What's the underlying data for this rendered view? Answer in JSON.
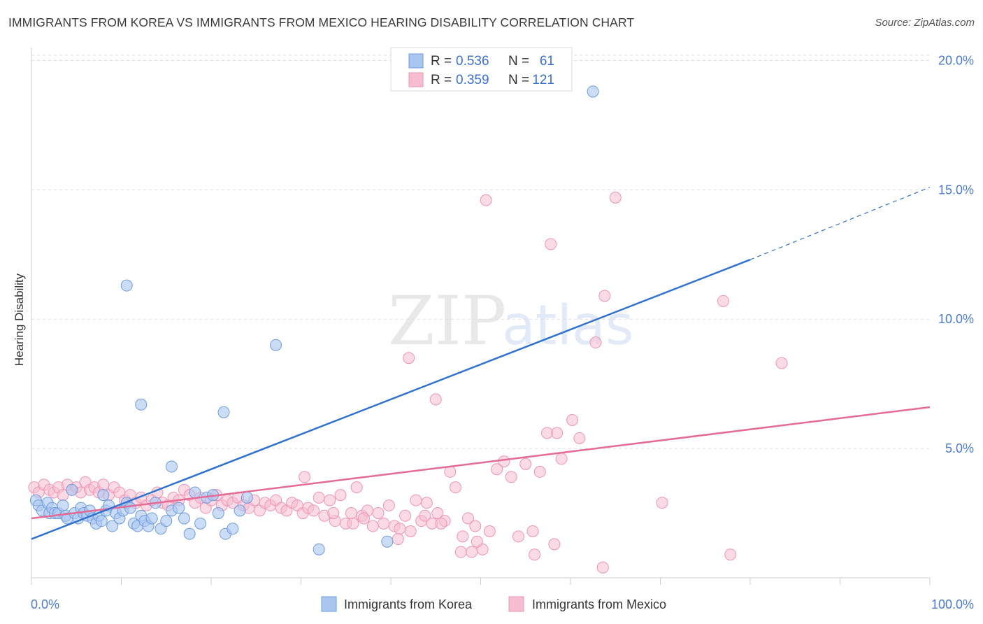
{
  "title": "IMMIGRANTS FROM KOREA VS IMMIGRANTS FROM MEXICO HEARING DISABILITY CORRELATION CHART",
  "source": "Source: ZipAtlas.com",
  "watermark": {
    "zip": "ZIP",
    "atlas": "atlas"
  },
  "colors": {
    "korea_fill": "#a9c6f0",
    "korea_stroke": "#6f9be0",
    "korea_line": "#2f72d0",
    "mexico_fill": "#f6bcd0",
    "mexico_stroke": "#ee94b3",
    "mexico_line": "#e56a96",
    "grid": "#dddddd",
    "tick_text": "#4a7bd0"
  },
  "legend": {
    "rows": [
      {
        "r_label": "R = ",
        "r_value": "0.536",
        "n_label": "N = ",
        "n_value": "61"
      },
      {
        "r_label": "R = ",
        "r_value": "0.359",
        "n_label": "N = ",
        "n_value": "121"
      }
    ]
  },
  "chart_data": {
    "type": "scatter",
    "title": "IMMIGRANTS FROM KOREA VS IMMIGRANTS FROM MEXICO HEARING DISABILITY CORRELATION CHART",
    "xlabel": "",
    "ylabel": "Hearing Disability",
    "xlim": [
      0,
      100
    ],
    "ylim": [
      0,
      20.5
    ],
    "x_tick_labels": [
      "0.0%",
      "100.0%"
    ],
    "y_ticks": [
      5,
      10,
      15,
      20
    ],
    "y_tick_labels": [
      "5.0%",
      "10.0%",
      "15.0%",
      "20.0%"
    ],
    "series": [
      {
        "name": "Immigrants from Korea",
        "R": 0.536,
        "N": 61,
        "trend": {
          "x0": 0,
          "y0": 1.5,
          "x1": 80,
          "y1": 12.3,
          "dash_to_x": 100,
          "dash_to_y": 15.1
        },
        "points": [
          [
            0.5,
            3.0
          ],
          [
            0.8,
            2.8
          ],
          [
            1.2,
            2.6
          ],
          [
            1.8,
            2.9
          ],
          [
            2.0,
            2.5
          ],
          [
            2.3,
            2.7
          ],
          [
            2.6,
            2.5
          ],
          [
            3.0,
            2.5
          ],
          [
            3.5,
            2.8
          ],
          [
            3.8,
            2.4
          ],
          [
            4.0,
            2.3
          ],
          [
            4.5,
            3.4
          ],
          [
            4.8,
            2.5
          ],
          [
            5.2,
            2.3
          ],
          [
            5.5,
            2.7
          ],
          [
            5.8,
            2.5
          ],
          [
            6.2,
            2.4
          ],
          [
            6.5,
            2.6
          ],
          [
            6.8,
            2.3
          ],
          [
            7.2,
            2.1
          ],
          [
            7.5,
            2.4
          ],
          [
            7.8,
            2.2
          ],
          [
            8.0,
            3.2
          ],
          [
            8.3,
            2.6
          ],
          [
            8.6,
            2.8
          ],
          [
            9.0,
            2.0
          ],
          [
            9.4,
            2.5
          ],
          [
            9.8,
            2.3
          ],
          [
            10.2,
            2.6
          ],
          [
            10.6,
            2.9
          ],
          [
            11.0,
            2.7
          ],
          [
            11.4,
            2.1
          ],
          [
            11.8,
            2.0
          ],
          [
            12.2,
            2.4
          ],
          [
            12.6,
            2.2
          ],
          [
            13.0,
            2.0
          ],
          [
            13.4,
            2.3
          ],
          [
            13.8,
            2.9
          ],
          [
            14.4,
            1.9
          ],
          [
            15.0,
            2.2
          ],
          [
            15.6,
            2.6
          ],
          [
            16.4,
            2.7
          ],
          [
            17.0,
            2.3
          ],
          [
            17.6,
            1.7
          ],
          [
            18.2,
            3.3
          ],
          [
            18.8,
            2.1
          ],
          [
            19.5,
            3.1
          ],
          [
            20.2,
            3.2
          ],
          [
            20.8,
            2.5
          ],
          [
            21.6,
            1.7
          ],
          [
            22.4,
            1.9
          ],
          [
            23.2,
            2.6
          ],
          [
            24.0,
            3.1
          ],
          [
            10.6,
            11.3
          ],
          [
            12.2,
            6.7
          ],
          [
            15.6,
            4.3
          ],
          [
            21.4,
            6.4
          ],
          [
            27.2,
            9.0
          ],
          [
            62.5,
            18.8
          ],
          [
            32.0,
            1.1
          ],
          [
            39.6,
            1.4
          ]
        ]
      },
      {
        "name": "Immigrants from Mexico",
        "R": 0.359,
        "N": 121,
        "trend": {
          "x0": 0,
          "y0": 2.3,
          "x1": 100,
          "y1": 6.6
        },
        "points": [
          [
            0.3,
            3.5
          ],
          [
            0.8,
            3.3
          ],
          [
            1.4,
            3.6
          ],
          [
            2.0,
            3.4
          ],
          [
            2.5,
            3.3
          ],
          [
            3.0,
            3.5
          ],
          [
            3.5,
            3.2
          ],
          [
            4.0,
            3.6
          ],
          [
            4.5,
            3.4
          ],
          [
            5.0,
            3.5
          ],
          [
            5.5,
            3.3
          ],
          [
            6.0,
            3.7
          ],
          [
            6.5,
            3.4
          ],
          [
            7.0,
            3.5
          ],
          [
            7.5,
            3.3
          ],
          [
            8.0,
            3.6
          ],
          [
            8.6,
            3.2
          ],
          [
            9.2,
            3.5
          ],
          [
            9.8,
            3.3
          ],
          [
            10.4,
            3.0
          ],
          [
            11.0,
            3.2
          ],
          [
            11.6,
            2.9
          ],
          [
            12.2,
            3.1
          ],
          [
            12.8,
            2.8
          ],
          [
            13.4,
            3.0
          ],
          [
            14.0,
            3.3
          ],
          [
            14.6,
            2.9
          ],
          [
            15.2,
            2.8
          ],
          [
            15.8,
            3.1
          ],
          [
            16.4,
            3.0
          ],
          [
            17.0,
            3.4
          ],
          [
            17.6,
            3.2
          ],
          [
            18.2,
            2.9
          ],
          [
            18.8,
            3.1
          ],
          [
            19.4,
            2.7
          ],
          [
            20.0,
            3.0
          ],
          [
            20.6,
            3.2
          ],
          [
            21.2,
            2.8
          ],
          [
            21.8,
            3.0
          ],
          [
            22.4,
            2.9
          ],
          [
            23.0,
            3.1
          ],
          [
            23.6,
            2.8
          ],
          [
            24.2,
            2.7
          ],
          [
            24.8,
            3.0
          ],
          [
            25.4,
            2.6
          ],
          [
            26.0,
            2.9
          ],
          [
            26.6,
            2.8
          ],
          [
            27.2,
            3.0
          ],
          [
            27.8,
            2.7
          ],
          [
            28.4,
            2.6
          ],
          [
            29.0,
            2.9
          ],
          [
            29.6,
            2.8
          ],
          [
            30.2,
            2.5
          ],
          [
            30.8,
            2.7
          ],
          [
            31.4,
            2.6
          ],
          [
            32.0,
            3.1
          ],
          [
            32.6,
            2.4
          ],
          [
            33.2,
            3.0
          ],
          [
            33.8,
            2.2
          ],
          [
            34.4,
            3.2
          ],
          [
            35.0,
            2.1
          ],
          [
            35.6,
            2.5
          ],
          [
            36.2,
            3.5
          ],
          [
            36.8,
            2.4
          ],
          [
            37.4,
            2.6
          ],
          [
            38.0,
            2.0
          ],
          [
            38.6,
            2.5
          ],
          [
            39.2,
            2.1
          ],
          [
            39.8,
            2.8
          ],
          [
            40.4,
            2.0
          ],
          [
            41.0,
            1.9
          ],
          [
            41.6,
            2.4
          ],
          [
            42.2,
            1.8
          ],
          [
            42.8,
            3.0
          ],
          [
            43.4,
            2.2
          ],
          [
            44.0,
            2.9
          ],
          [
            44.6,
            2.1
          ],
          [
            45.2,
            2.5
          ],
          [
            46.0,
            2.2
          ],
          [
            46.6,
            4.1
          ],
          [
            47.2,
            3.5
          ],
          [
            48.0,
            1.6
          ],
          [
            48.6,
            2.3
          ],
          [
            49.4,
            2.0
          ],
          [
            50.2,
            1.1
          ],
          [
            51.0,
            1.8
          ],
          [
            51.8,
            4.2
          ],
          [
            52.6,
            4.5
          ],
          [
            53.4,
            3.9
          ],
          [
            54.2,
            1.6
          ],
          [
            55.0,
            4.4
          ],
          [
            55.8,
            1.8
          ],
          [
            56.6,
            4.1
          ],
          [
            57.4,
            5.6
          ],
          [
            58.2,
            1.3
          ],
          [
            59.0,
            4.6
          ],
          [
            60.2,
            6.1
          ],
          [
            61.0,
            5.4
          ],
          [
            30.4,
            3.9
          ],
          [
            33.6,
            2.5
          ],
          [
            35.8,
            2.1
          ],
          [
            37.0,
            2.3
          ],
          [
            40.8,
            1.5
          ],
          [
            43.8,
            2.4
          ],
          [
            45.6,
            2.1
          ],
          [
            47.8,
            1.0
          ],
          [
            49.0,
            1.0
          ],
          [
            49.6,
            1.4
          ],
          [
            56.0,
            0.9
          ],
          [
            63.6,
            0.4
          ],
          [
            70.2,
            2.9
          ],
          [
            77.8,
            0.9
          ],
          [
            42.0,
            8.5
          ],
          [
            45.0,
            6.9
          ],
          [
            50.6,
            14.6
          ],
          [
            57.8,
            12.9
          ],
          [
            62.8,
            9.1
          ],
          [
            63.8,
            10.9
          ],
          [
            65.0,
            14.7
          ],
          [
            77.0,
            10.7
          ],
          [
            83.5,
            8.3
          ],
          [
            58.5,
            5.6
          ]
        ]
      }
    ]
  },
  "bottom_legend": {
    "korea_label": "Immigrants from Korea",
    "mexico_label": "Immigrants from Mexico"
  }
}
